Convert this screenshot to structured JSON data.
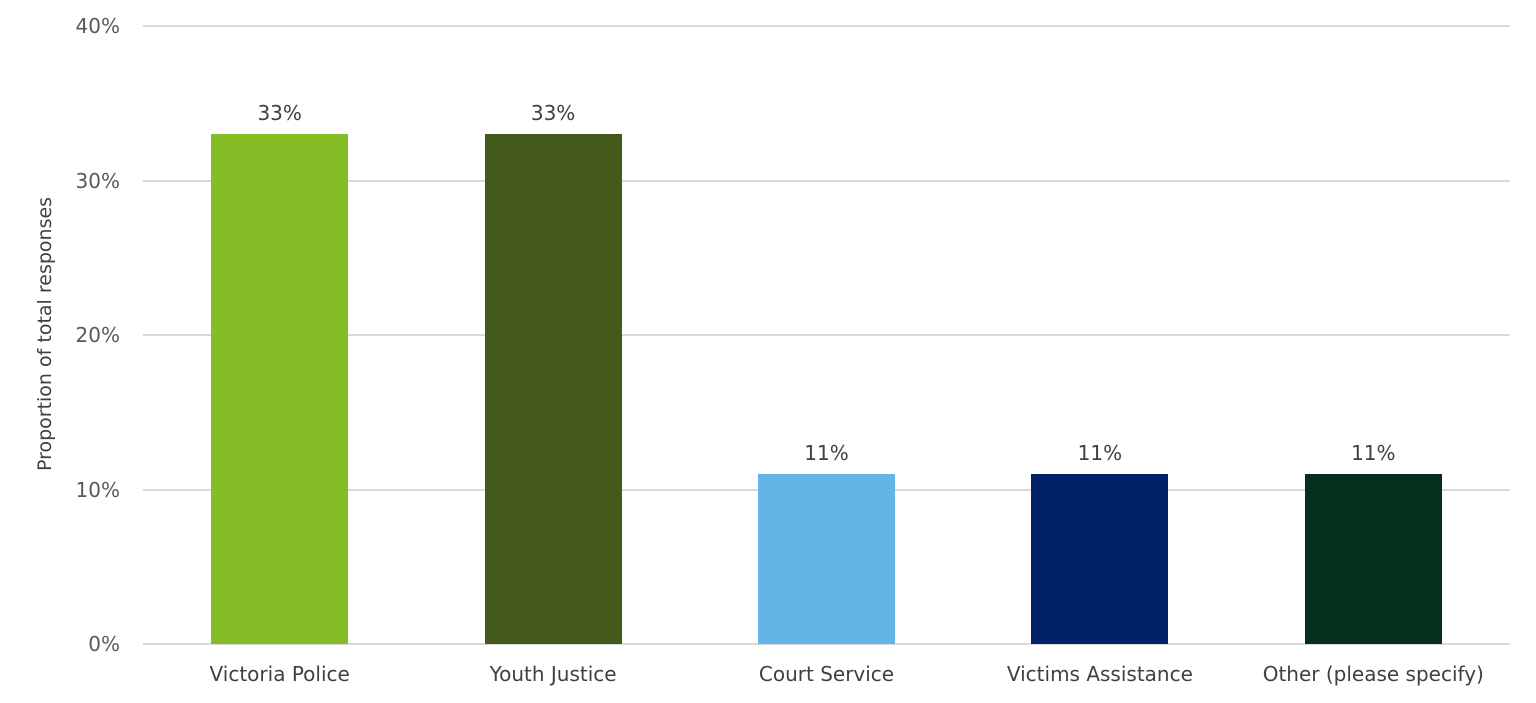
{
  "chart_data": {
    "type": "bar",
    "title": "",
    "xlabel": "",
    "ylabel": "Proportion of total responses",
    "ylim": [
      0,
      40
    ],
    "yticks": [
      "0%",
      "10%",
      "20%",
      "30%",
      "40%"
    ],
    "grid": true,
    "legend": null,
    "categories": [
      "Victoria Police",
      "Youth Justice",
      "Court Service",
      "Victims Assistance",
      "Other (please specify)"
    ],
    "values": [
      33,
      33,
      11,
      11,
      11
    ],
    "data_labels": [
      "33%",
      "33%",
      "11%",
      "11%",
      "11%"
    ],
    "colors": [
      "#86bc25",
      "#43591a",
      "#62b5e5",
      "#012169",
      "#04301c"
    ]
  },
  "axis": {
    "ylabel": "Proportion of total responses",
    "yticks": [
      "0%",
      "10%",
      "20%",
      "30%",
      "40%"
    ]
  },
  "bars": [
    {
      "label": "Victoria Police",
      "value_label": "33%"
    },
    {
      "label": "Youth Justice",
      "value_label": "33%"
    },
    {
      "label": "Court Service",
      "value_label": "11%"
    },
    {
      "label": "Victims Assistance",
      "value_label": "11%"
    },
    {
      "label": "Other (please specify)",
      "value_label": "11%"
    }
  ]
}
